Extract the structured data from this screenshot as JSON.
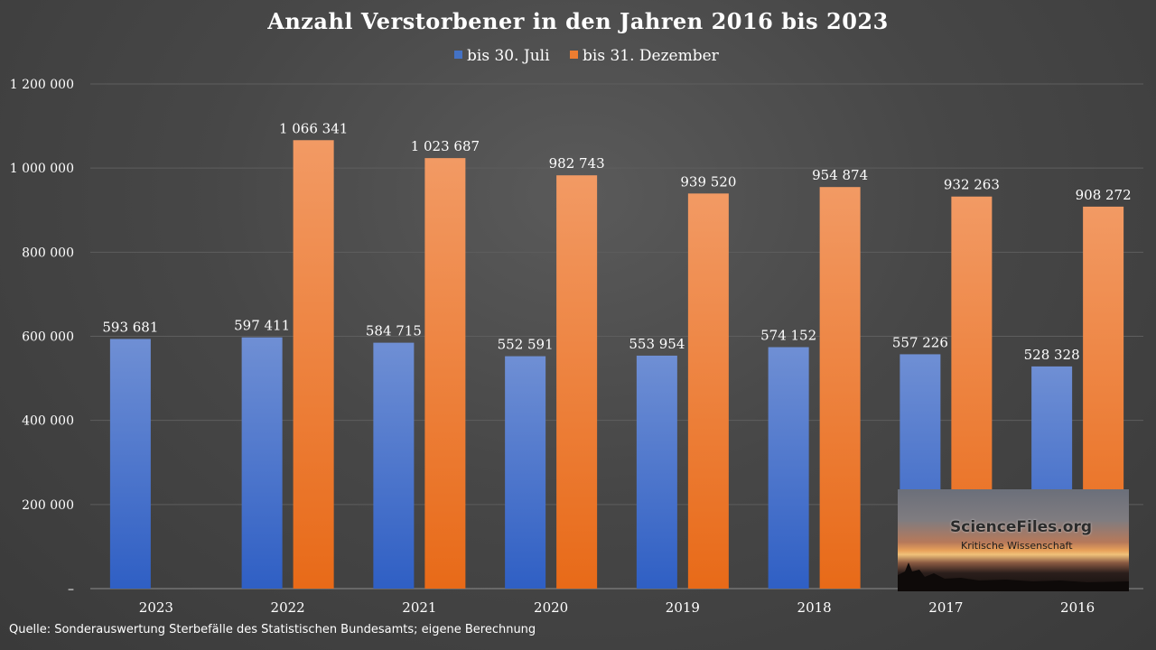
{
  "chart_data": {
    "type": "bar",
    "title": "Anzahl Verstorbener in den Jahren 2016 bis 2023",
    "categories": [
      "2023",
      "2022",
      "2021",
      "2020",
      "2019",
      "2018",
      "2017",
      "2016"
    ],
    "series": [
      {
        "name": "bis 30. Juli",
        "color": "#4472c4",
        "values": [
          593681,
          597411,
          584715,
          552591,
          553954,
          574152,
          557226,
          528328
        ],
        "labels": [
          "593 681",
          "597 411",
          "584 715",
          "552 591",
          "553 954",
          "574 152",
          "557 226",
          "528 328"
        ]
      },
      {
        "name": "bis 31. Dezember",
        "color": "#ed7d31",
        "values": [
          null,
          1066341,
          1023687,
          982743,
          939520,
          954874,
          932263,
          908272
        ],
        "labels": [
          "",
          "1 066 341",
          "1 023 687",
          "982 743",
          "939 520",
          "954 874",
          "932 263",
          "908 272"
        ]
      }
    ],
    "ylim": [
      0,
      1200000
    ],
    "yticks": [
      0,
      200000,
      400000,
      600000,
      800000,
      1000000,
      1200000
    ],
    "ytick_labels": [
      "–",
      "200 000",
      "400 000",
      "600 000",
      "800 000",
      "1 000 000",
      "1 200 000"
    ],
    "xlabel": "",
    "ylabel": "",
    "legend_position": "top-center",
    "grid": true
  },
  "source": "Quelle: Sonderauswertung Sterbefälle des Statistischen Bundesamts; eigene Berechnung",
  "logo": {
    "title": "ScienceFiles.org",
    "subtitle": "Kritische Wissenschaft"
  }
}
